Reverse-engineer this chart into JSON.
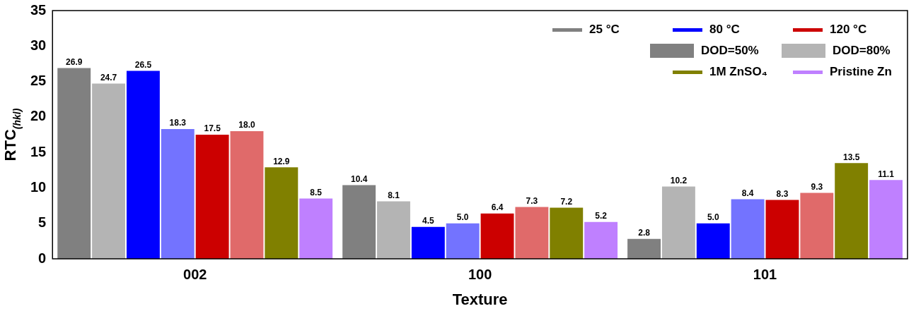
{
  "chart_data": {
    "type": "bar",
    "xlabel": "Texture",
    "ylabel": "RTC$_{(hkl)}$",
    "categories": [
      "002",
      "100",
      "101"
    ],
    "series": [
      {
        "name": "25 °C",
        "color": "#808080",
        "values": [
          26.9,
          10.4,
          2.8
        ],
        "value_labels": [
          "26.9",
          "10.4",
          "2.8"
        ]
      },
      {
        "color": "#b4b4b4",
        "values": [
          24.7,
          8.1,
          10.2
        ],
        "value_labels": [
          "24.7",
          "8.1",
          "10.2"
        ]
      },
      {
        "name": "80 °C",
        "color": "#0000ff",
        "values": [
          26.5,
          4.5,
          5.0
        ],
        "value_labels": [
          "26.5",
          "4.5",
          "5.0"
        ]
      },
      {
        "color": "#7373ff",
        "values": [
          18.3,
          5.0,
          8.4
        ],
        "value_labels": [
          "18.3",
          "5.0",
          "8.4"
        ]
      },
      {
        "name": "120 °C",
        "color": "#cc0000",
        "values": [
          17.5,
          6.4,
          8.3
        ],
        "value_labels": [
          "17.5",
          "6.4",
          "8.3"
        ]
      },
      {
        "color": "#e06a6a",
        "values": [
          18.0,
          7.3,
          9.3
        ],
        "value_labels": [
          "18.0",
          "7.3",
          "9.3"
        ]
      },
      {
        "name": "1M ZnSO₄",
        "color": "#808000",
        "values": [
          12.9,
          7.2,
          13.5
        ],
        "value_labels": [
          "12.9",
          "7.2",
          "13.5"
        ]
      },
      {
        "name": "Pristine Zn",
        "color": "#bf80ff",
        "values": [
          8.5,
          5.2,
          11.1
        ],
        "value_labels": [
          "8.5",
          "5.2",
          "11.1"
        ]
      }
    ],
    "annotations": [
      "DOD=50%",
      "DOD=80%"
    ],
    "ylim": [
      0,
      35
    ],
    "yticks": [
      0,
      5,
      10,
      15,
      20,
      25,
      30,
      35
    ],
    "grid": false,
    "legend": "top right"
  }
}
